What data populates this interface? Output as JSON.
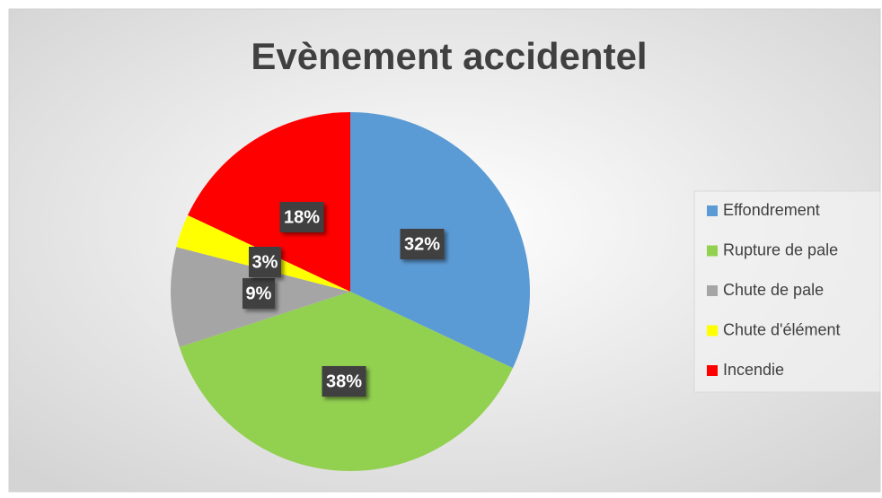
{
  "chart_data": {
    "type": "pie",
    "title": "Evènement accidentel",
    "categories": [
      "Effondrement",
      "Rupture de pale",
      "Chute de pale",
      "Chute d'élément",
      "Incendie"
    ],
    "values": [
      32,
      38,
      9,
      3,
      18
    ],
    "value_labels": [
      "32%",
      "38%",
      "9%",
      "3%",
      "18%"
    ],
    "colors": [
      "#5b9bd5",
      "#92d050",
      "#a5a5a5",
      "#ffff00",
      "#ff0000"
    ],
    "legend": "right"
  }
}
